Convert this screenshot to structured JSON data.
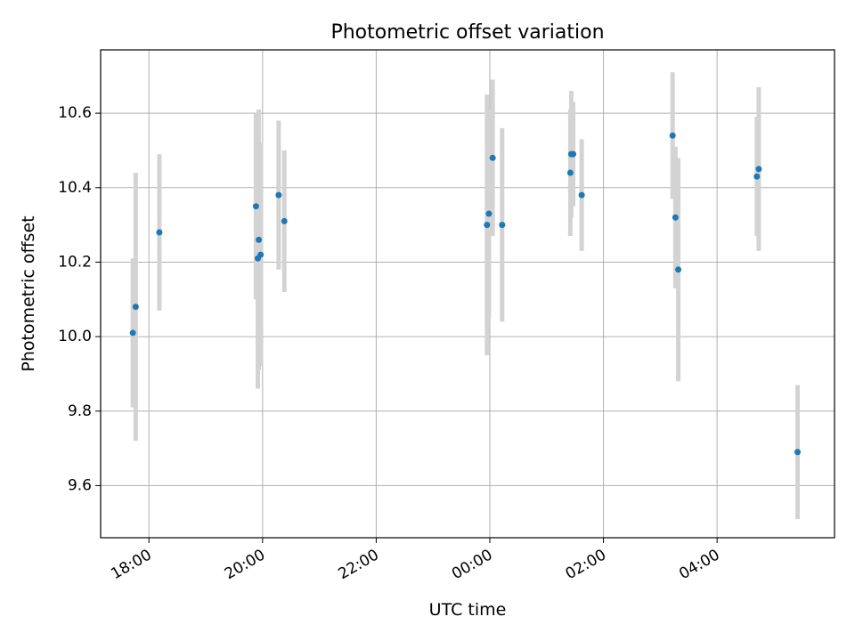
{
  "chart_data": {
    "type": "scatter",
    "title": "Photometric offset variation",
    "xlabel": "UTC time",
    "ylabel": "Photometric offset",
    "x_ticks": [
      "18:00",
      "20:00",
      "22:00",
      "00:00",
      "02:00",
      "04:00"
    ],
    "y_ticks": [
      "9.6",
      "9.8",
      "10.0",
      "10.2",
      "10.4",
      "10.6"
    ],
    "xlim": [
      "17:09",
      "06:04"
    ],
    "ylim": [
      9.46,
      10.77
    ],
    "grid": true,
    "colors": {
      "point": "#1f77b4",
      "errorbar": "#d3d3d3",
      "grid": "#b0b0b0"
    },
    "series": [
      {
        "points": [
          {
            "x": "17:43",
            "y": 10.01,
            "err": 0.2
          },
          {
            "x": "17:46",
            "y": 10.08,
            "err": 0.36
          },
          {
            "x": "18:11",
            "y": 10.28,
            "err": 0.21
          },
          {
            "x": "19:53",
            "y": 10.35,
            "err": 0.25
          },
          {
            "x": "19:55",
            "y": 10.21,
            "err": 0.35
          },
          {
            "x": "19:56",
            "y": 10.26,
            "err": 0.35
          },
          {
            "x": "19:58",
            "y": 10.22,
            "err": 0.3
          },
          {
            "x": "20:17",
            "y": 10.38,
            "err": 0.2
          },
          {
            "x": "20:23",
            "y": 10.31,
            "err": 0.19
          },
          {
            "x": "23:57",
            "y": 10.3,
            "err": 0.35
          },
          {
            "x": "23:59",
            "y": 10.33,
            "err": 0.28
          },
          {
            "x": "00:03",
            "y": 10.48,
            "err": 0.21
          },
          {
            "x": "00:13",
            "y": 10.3,
            "err": 0.26
          },
          {
            "x": "01:25",
            "y": 10.44,
            "err": 0.17
          },
          {
            "x": "01:26",
            "y": 10.49,
            "err": 0.17
          },
          {
            "x": "01:28",
            "y": 10.49,
            "err": 0.14
          },
          {
            "x": "01:37",
            "y": 10.38,
            "err": 0.15
          },
          {
            "x": "03:13",
            "y": 10.54,
            "err": 0.17
          },
          {
            "x": "03:16",
            "y": 10.32,
            "err": 0.19
          },
          {
            "x": "03:19",
            "y": 10.18,
            "err": 0.3
          },
          {
            "x": "04:42",
            "y": 10.43,
            "err": 0.16
          },
          {
            "x": "04:44",
            "y": 10.45,
            "err": 0.22
          },
          {
            "x": "05:25",
            "y": 9.69,
            "err": 0.18
          }
        ]
      }
    ]
  }
}
